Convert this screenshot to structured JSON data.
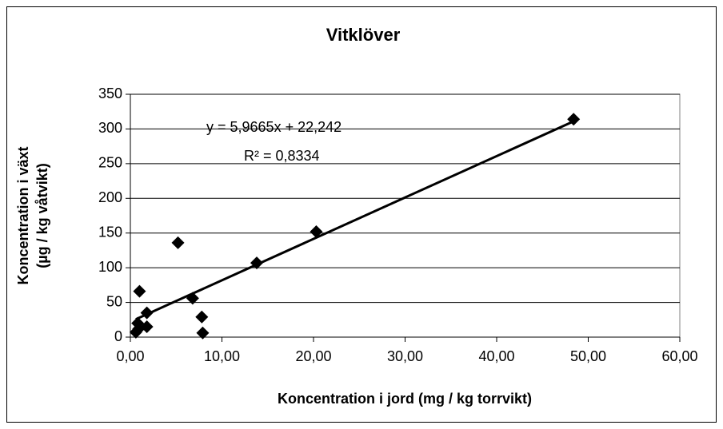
{
  "chart_data": {
    "type": "scatter",
    "title": "Vitklöver",
    "x_label": "Koncentration i jord (mg / kg torrvikt)",
    "y_label": [
      "Koncentration i växt",
      "(µg / kg våtvikt)"
    ],
    "annotations": [
      "y = 5,9665x + 22,242",
      "R² = 0,8334"
    ],
    "trendline": {
      "slope": 5.9665,
      "intercept": 22.242
    },
    "x": [
      48.4,
      20.3,
      13.8,
      5.2,
      6.8,
      7.8,
      7.9,
      1.0,
      1.8,
      1.8,
      0.8,
      0.6,
      0.9
    ],
    "values": [
      314,
      152,
      107,
      136,
      56,
      29,
      6,
      66,
      35,
      15,
      20,
      7,
      12
    ],
    "color": "#000000",
    "xlim": [
      0,
      60
    ],
    "xticks": [
      {
        "value": 0,
        "label": "0,00"
      },
      {
        "value": 10,
        "label": "10,00"
      },
      {
        "value": 20,
        "label": "20,00"
      },
      {
        "value": 30,
        "label": "30,00"
      },
      {
        "value": 40,
        "label": "40,00"
      },
      {
        "value": 50,
        "label": "50,00"
      },
      {
        "value": 60,
        "label": "60,00"
      }
    ],
    "ylim": [
      0,
      350
    ],
    "yticks": [
      0,
      50,
      100,
      150,
      200,
      250,
      300,
      350
    ],
    "grid": true
  }
}
